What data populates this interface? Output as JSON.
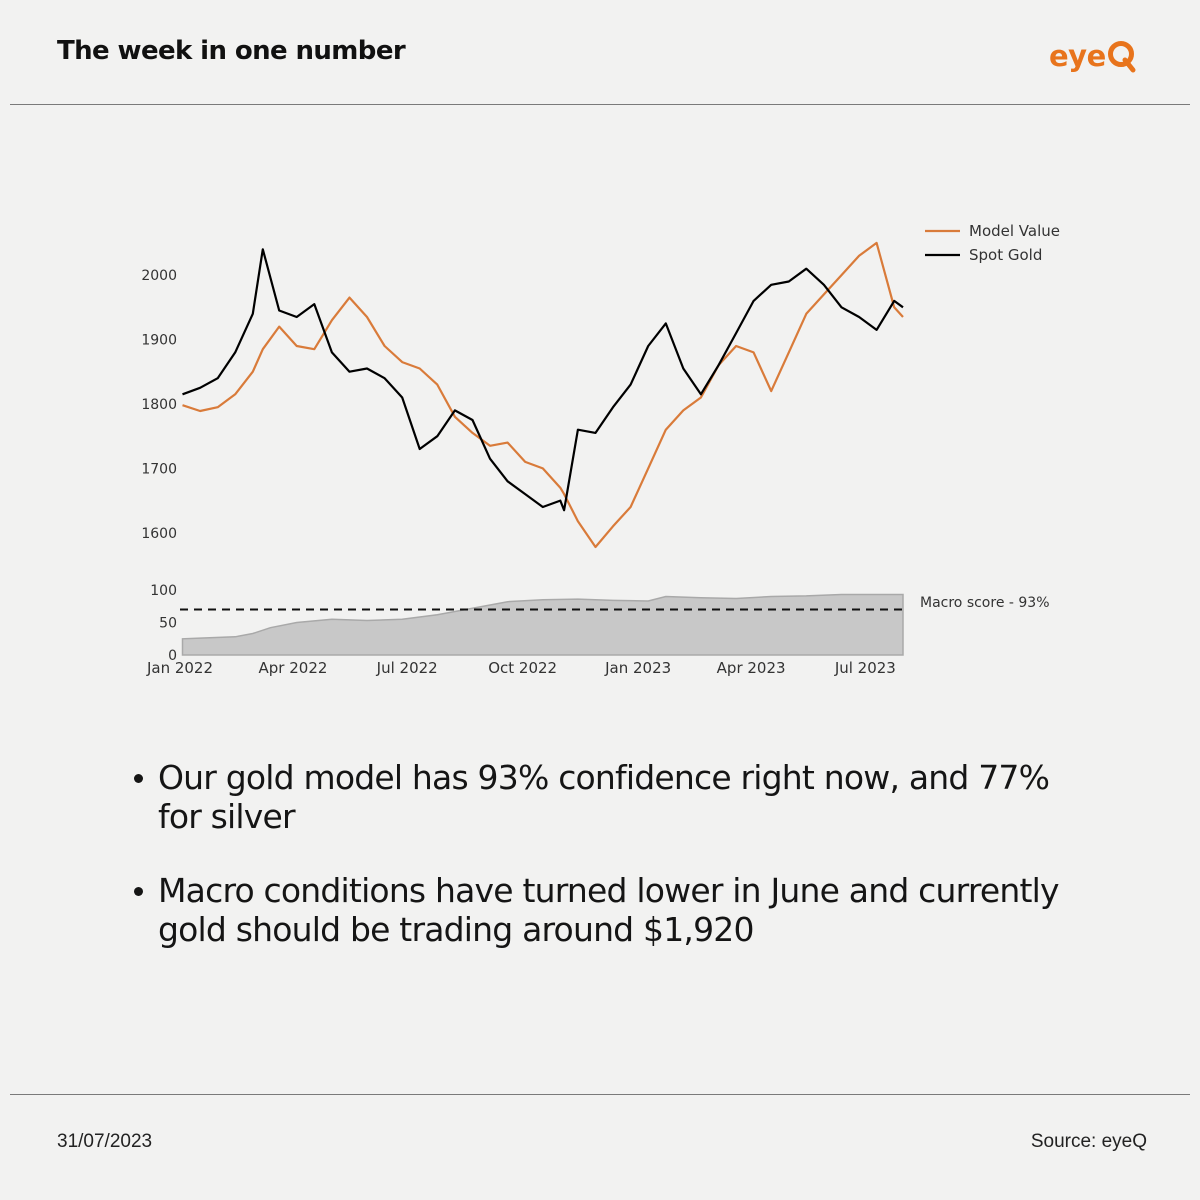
{
  "header": {
    "title": "The week in one number",
    "logo_text": "eye",
    "logo_mark": "Q"
  },
  "colors": {
    "accent": "#e8741c",
    "model_line": "#d97b3a",
    "spot_line": "#000000",
    "area_fill": "#c8c8c8"
  },
  "chart_data": [
    {
      "type": "line",
      "x_dates": [
        "2022-01-03",
        "2022-01-17",
        "2022-01-31",
        "2022-02-14",
        "2022-02-28",
        "2022-03-08",
        "2022-03-21",
        "2022-04-04",
        "2022-04-18",
        "2022-05-02",
        "2022-05-16",
        "2022-05-30",
        "2022-06-13",
        "2022-06-27",
        "2022-07-11",
        "2022-07-25",
        "2022-08-08",
        "2022-08-22",
        "2022-09-05",
        "2022-09-19",
        "2022-10-03",
        "2022-10-17",
        "2022-10-31",
        "2022-11-03",
        "2022-11-14",
        "2022-11-28",
        "2022-12-12",
        "2022-12-26",
        "2023-01-09",
        "2023-01-23",
        "2023-02-06",
        "2023-02-20",
        "2023-03-06",
        "2023-03-20",
        "2023-04-03",
        "2023-04-17",
        "2023-05-01",
        "2023-05-15",
        "2023-05-29",
        "2023-06-12",
        "2023-06-26",
        "2023-07-10",
        "2023-07-24",
        "2023-07-31"
      ],
      "series": [
        {
          "name": "Model Value",
          "color": "#d97b3a",
          "values": [
            1798,
            1789,
            1795,
            1815,
            1850,
            1885,
            1920,
            1890,
            1885,
            1930,
            1965,
            1935,
            1890,
            1865,
            1855,
            1830,
            1780,
            1755,
            1735,
            1740,
            1710,
            1700,
            1670,
            1660,
            1618,
            1578,
            1610,
            1640,
            1700,
            1760,
            1790,
            1810,
            1860,
            1890,
            1880,
            1820,
            1880,
            1940,
            1970,
            2000,
            2030,
            2050,
            1950,
            1935
          ]
        },
        {
          "name": "Spot Gold",
          "color": "#000000",
          "values": [
            1815,
            1825,
            1840,
            1880,
            1940,
            2040,
            1945,
            1935,
            1955,
            1880,
            1850,
            1855,
            1840,
            1810,
            1730,
            1750,
            1790,
            1775,
            1715,
            1680,
            1660,
            1640,
            1650,
            1635,
            1760,
            1755,
            1795,
            1830,
            1890,
            1925,
            1855,
            1815,
            1860,
            1910,
            1960,
            1985,
            1990,
            2010,
            1985,
            1950,
            1935,
            1915,
            1960,
            1950
          ]
        }
      ],
      "yticks": [
        "1600",
        "1700",
        "1800",
        "1900",
        "2000"
      ],
      "ylim": [
        1550,
        2070
      ],
      "legend": [
        "Model Value",
        "Spot Gold"
      ],
      "legend_placement": "top-right"
    },
    {
      "type": "area",
      "name": "Macro score",
      "x_dates": [
        "2022-01-03",
        "2022-01-17",
        "2022-02-14",
        "2022-02-28",
        "2022-03-14",
        "2022-04-04",
        "2022-05-02",
        "2022-05-30",
        "2022-06-27",
        "2022-07-25",
        "2022-08-22",
        "2022-09-19",
        "2022-10-17",
        "2022-11-14",
        "2022-12-12",
        "2023-01-09",
        "2023-01-23",
        "2023-02-20",
        "2023-03-20",
        "2023-04-17",
        "2023-05-15",
        "2023-06-12",
        "2023-07-10",
        "2023-07-31"
      ],
      "values": [
        25,
        26,
        28,
        33,
        42,
        50,
        55,
        53,
        55,
        62,
        72,
        82,
        85,
        86,
        84,
        83,
        90,
        88,
        87,
        90,
        91,
        93,
        93,
        93
      ],
      "threshold": 70,
      "yticks": [
        "0",
        "50",
        "100"
      ],
      "ylim": [
        0,
        100
      ],
      "annotation": "Macro score - 93%",
      "xtick_labels": [
        "Jan 2022",
        "Apr 2022",
        "Jul 2022",
        "Oct 2022",
        "Jan 2023",
        "Apr 2023",
        "Jul 2023"
      ],
      "xtick_dates": [
        "2022-01-01",
        "2022-04-01",
        "2022-07-01",
        "2022-10-01",
        "2023-01-01",
        "2023-04-01",
        "2023-07-01"
      ]
    }
  ],
  "bullets": [
    {
      "text": "Our gold model has 93% confidence right now, and 77% for silver"
    },
    {
      "text": "Macro conditions have turned lower in June and currently gold should be trading around $1,920"
    }
  ],
  "footer": {
    "date": "31/07/2023",
    "source": "Source: eyeQ"
  }
}
